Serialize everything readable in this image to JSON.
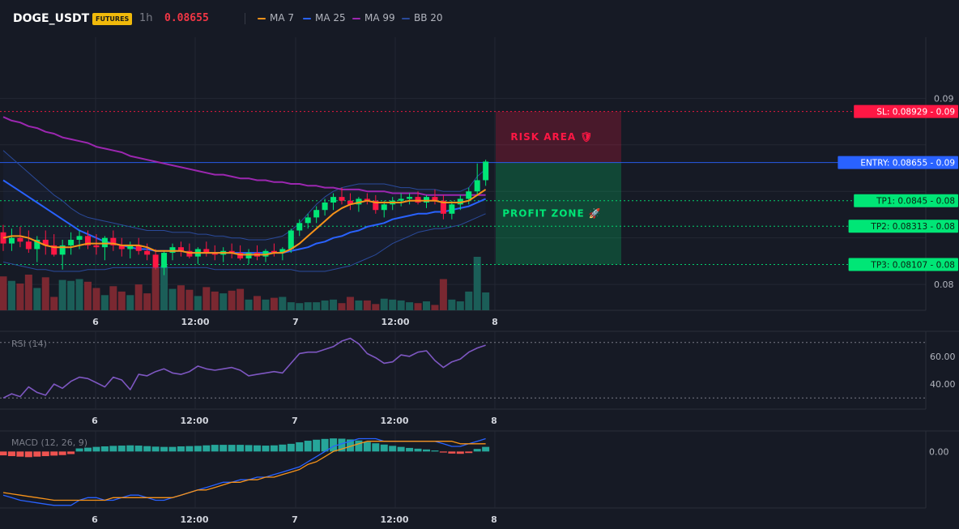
{
  "header": {
    "symbol": "DOGE_USDT",
    "badge": "FUTURES",
    "interval": "1h",
    "price": "0.08655",
    "legend": [
      {
        "label": "MA 7",
        "color": "#f7931a"
      },
      {
        "label": "MA 25",
        "color": "#2962ff"
      },
      {
        "label": "MA 99",
        "color": "#9c27b0"
      },
      {
        "label": "BB 20",
        "color": "#2a4a9a"
      }
    ]
  },
  "colors": {
    "up": "#26a69a",
    "down": "#ef5350",
    "bull_candle": "#00e676",
    "bear_candle": "#ff1744",
    "grid": "#232733"
  },
  "chart_data": [
    {
      "type": "candlestick",
      "title": "DOGE_USDT",
      "x_ticks": [
        "6",
        "12:00",
        "7",
        "12:00",
        "8"
      ],
      "y_ticks": [
        "0.09",
        "0.08"
      ],
      "ylim": [
        0.07883,
        0.09328
      ],
      "candles": [
        [
          0.0828,
          0.0832,
          0.0818,
          0.0822
        ],
        [
          0.0822,
          0.083,
          0.0818,
          0.0825
        ],
        [
          0.0825,
          0.0831,
          0.082,
          0.0823
        ],
        [
          0.0823,
          0.0829,
          0.0817,
          0.0819
        ],
        [
          0.0819,
          0.0826,
          0.0812,
          0.0824
        ],
        [
          0.0824,
          0.0829,
          0.0816,
          0.0821
        ],
        [
          0.0821,
          0.0827,
          0.0815,
          0.0816
        ],
        [
          0.0816,
          0.0824,
          0.0808,
          0.0821
        ],
        [
          0.0821,
          0.0828,
          0.0816,
          0.0824
        ],
        [
          0.0824,
          0.0829,
          0.0819,
          0.0826
        ],
        [
          0.0826,
          0.0829,
          0.0819,
          0.0821
        ],
        [
          0.0821,
          0.0827,
          0.0816,
          0.082
        ],
        [
          0.082,
          0.0826,
          0.0813,
          0.0825
        ],
        [
          0.0825,
          0.0829,
          0.0818,
          0.0821
        ],
        [
          0.0821,
          0.0825,
          0.0815,
          0.0819
        ],
        [
          0.0819,
          0.0823,
          0.0814,
          0.0821
        ],
        [
          0.0821,
          0.0825,
          0.0816,
          0.0818
        ],
        [
          0.0818,
          0.0822,
          0.0813,
          0.0816
        ],
        [
          0.0816,
          0.0819,
          0.0808,
          0.0809
        ],
        [
          0.0809,
          0.0818,
          0.0805,
          0.0817
        ],
        [
          0.0817,
          0.0822,
          0.0813,
          0.082
        ],
        [
          0.082,
          0.0823,
          0.0815,
          0.0818
        ],
        [
          0.0818,
          0.0822,
          0.0814,
          0.0815
        ],
        [
          0.0815,
          0.082,
          0.0811,
          0.0819
        ],
        [
          0.0819,
          0.0823,
          0.0815,
          0.0817
        ],
        [
          0.0817,
          0.0821,
          0.0813,
          0.0816
        ],
        [
          0.0816,
          0.082,
          0.0812,
          0.0818
        ],
        [
          0.0818,
          0.0822,
          0.0814,
          0.0817
        ],
        [
          0.0817,
          0.0821,
          0.0813,
          0.0814
        ],
        [
          0.0814,
          0.0819,
          0.0811,
          0.0817
        ],
        [
          0.0817,
          0.0821,
          0.0813,
          0.0815
        ],
        [
          0.0815,
          0.0819,
          0.0812,
          0.0818
        ],
        [
          0.0818,
          0.0822,
          0.0815,
          0.0817
        ],
        [
          0.0817,
          0.082,
          0.0813,
          0.0819
        ],
        [
          0.0819,
          0.083,
          0.0817,
          0.0829
        ],
        [
          0.0829,
          0.0835,
          0.0826,
          0.0833
        ],
        [
          0.0833,
          0.0838,
          0.083,
          0.0836
        ],
        [
          0.0836,
          0.0842,
          0.0833,
          0.084
        ],
        [
          0.084,
          0.0846,
          0.0837,
          0.0844
        ],
        [
          0.0844,
          0.0849,
          0.084,
          0.0847
        ],
        [
          0.0847,
          0.0852,
          0.0843,
          0.0845
        ],
        [
          0.0845,
          0.0849,
          0.084,
          0.0843
        ],
        [
          0.0843,
          0.0847,
          0.0839,
          0.0846
        ],
        [
          0.0846,
          0.0849,
          0.0843,
          0.0845
        ],
        [
          0.0845,
          0.0848,
          0.0838,
          0.084
        ],
        [
          0.084,
          0.0845,
          0.0836,
          0.0843
        ],
        [
          0.0843,
          0.0847,
          0.084,
          0.0845
        ],
        [
          0.0845,
          0.0849,
          0.0842,
          0.0846
        ],
        [
          0.0846,
          0.0849,
          0.0843,
          0.0847
        ],
        [
          0.0847,
          0.085,
          0.0843,
          0.0844
        ],
        [
          0.0844,
          0.0848,
          0.0841,
          0.0847
        ],
        [
          0.0847,
          0.0851,
          0.0843,
          0.0845
        ],
        [
          0.0845,
          0.0848,
          0.0835,
          0.0838
        ],
        [
          0.0838,
          0.0845,
          0.0835,
          0.0843
        ],
        [
          0.0843,
          0.0848,
          0.084,
          0.0846
        ],
        [
          0.0846,
          0.0852,
          0.0843,
          0.085
        ],
        [
          0.085,
          0.0865,
          0.0848,
          0.0856
        ],
        [
          0.0856,
          0.0867,
          0.0853,
          0.0866
        ]
      ],
      "volumes": [
        38,
        33,
        30,
        40,
        25,
        37,
        15,
        34,
        33,
        35,
        32,
        25,
        17,
        27,
        21,
        17,
        29,
        19,
        48,
        50,
        24,
        28,
        23,
        16,
        26,
        21,
        19,
        22,
        24,
        12,
        16,
        12,
        14,
        15,
        9,
        8,
        9,
        9,
        11,
        12,
        8,
        15,
        11,
        11,
        7,
        13,
        12,
        11,
        9,
        8,
        10,
        6,
        35,
        12,
        10,
        21,
        60,
        20
      ],
      "lines": [
        {
          "name": "MA 7",
          "color": "#f7931a",
          "values": [
            0.0825,
            0.0826,
            0.0826,
            0.0825,
            0.0823,
            0.0821,
            0.082,
            0.082,
            0.082,
            0.0821,
            0.0822,
            0.0822,
            0.0822,
            0.0822,
            0.0821,
            0.0821,
            0.0821,
            0.082,
            0.0818,
            0.0818,
            0.0818,
            0.0818,
            0.0817,
            0.0817,
            0.0817,
            0.0817,
            0.0817,
            0.0817,
            0.0816,
            0.0816,
            0.0816,
            0.0816,
            0.0817,
            0.0817,
            0.0819,
            0.0822,
            0.0826,
            0.083,
            0.0834,
            0.0838,
            0.0841,
            0.0843,
            0.0844,
            0.0845,
            0.0844,
            0.0844,
            0.0844,
            0.0844,
            0.0845,
            0.0845,
            0.0845,
            0.0845,
            0.0844,
            0.0844,
            0.0844,
            0.0845,
            0.0848,
            0.0851
          ]
        },
        {
          "name": "MA 25",
          "color": "#2962ff",
          "values": [
            0.0856,
            0.0853,
            0.085,
            0.0847,
            0.0844,
            0.0841,
            0.0838,
            0.0835,
            0.0832,
            0.0829,
            0.0827,
            0.0825,
            0.0823,
            0.0822,
            0.0821,
            0.082,
            0.0819,
            0.0819,
            0.0818,
            0.0818,
            0.0818,
            0.0818,
            0.0817,
            0.0817,
            0.0817,
            0.0817,
            0.0817,
            0.0817,
            0.0817,
            0.0817,
            0.0817,
            0.0817,
            0.0817,
            0.0817,
            0.0818,
            0.0819,
            0.082,
            0.0822,
            0.0823,
            0.0825,
            0.0826,
            0.0828,
            0.0829,
            0.0831,
            0.0832,
            0.0833,
            0.0835,
            0.0836,
            0.0837,
            0.0838,
            0.0838,
            0.0839,
            0.0839,
            0.084,
            0.0841,
            0.0842,
            0.0844,
            0.0846
          ]
        },
        {
          "name": "MA 99",
          "color": "#9c27b0",
          "values": [
            0.089,
            0.0888,
            0.0887,
            0.0885,
            0.0884,
            0.0882,
            0.0881,
            0.0879,
            0.0878,
            0.0877,
            0.0876,
            0.0874,
            0.0873,
            0.0872,
            0.0871,
            0.0869,
            0.0868,
            0.0867,
            0.0866,
            0.0865,
            0.0864,
            0.0863,
            0.0862,
            0.0861,
            0.086,
            0.0859,
            0.0859,
            0.0858,
            0.0857,
            0.0857,
            0.0856,
            0.0856,
            0.0855,
            0.0855,
            0.0854,
            0.0854,
            0.0853,
            0.0853,
            0.0852,
            0.0852,
            0.0851,
            0.0851,
            0.0851,
            0.085,
            0.085,
            0.085,
            0.0849,
            0.0849,
            0.0849,
            0.0849,
            0.0848,
            0.0848,
            0.0848,
            0.0848,
            0.0848,
            0.0848,
            0.0848,
            0.0848
          ]
        },
        {
          "name": "BB 20 upper",
          "color": "#2a4a9a",
          "values": [
            0.0872,
            0.0868,
            0.0864,
            0.086,
            0.0856,
            0.0852,
            0.0848,
            0.0845,
            0.0841,
            0.0838,
            0.0836,
            0.0835,
            0.0834,
            0.0833,
            0.0832,
            0.0831,
            0.083,
            0.0829,
            0.0829,
            0.0829,
            0.0828,
            0.0828,
            0.0828,
            0.0827,
            0.0827,
            0.0826,
            0.0826,
            0.0825,
            0.0825,
            0.0824,
            0.0824,
            0.0824,
            0.0825,
            0.0826,
            0.0829,
            0.0833,
            0.0838,
            0.0843,
            0.0847,
            0.085,
            0.0852,
            0.0853,
            0.0854,
            0.0854,
            0.0854,
            0.0854,
            0.0853,
            0.0852,
            0.0852,
            0.0851,
            0.0851,
            0.0851,
            0.085,
            0.085,
            0.085,
            0.0852,
            0.0858,
            0.0862
          ]
        },
        {
          "name": "BB 20 lower",
          "color": "#2a4a9a",
          "values": [
            0.0812,
            0.0811,
            0.081,
            0.0809,
            0.0808,
            0.0808,
            0.0807,
            0.0807,
            0.0807,
            0.0807,
            0.0808,
            0.0808,
            0.0808,
            0.0809,
            0.0809,
            0.0809,
            0.0809,
            0.0809,
            0.0809,
            0.0809,
            0.0809,
            0.0809,
            0.0809,
            0.0809,
            0.0809,
            0.0808,
            0.0808,
            0.0808,
            0.0808,
            0.0808,
            0.0808,
            0.0808,
            0.0808,
            0.0808,
            0.0808,
            0.0807,
            0.0807,
            0.0807,
            0.0807,
            0.0808,
            0.0809,
            0.081,
            0.0812,
            0.0814,
            0.0816,
            0.0819,
            0.0822,
            0.0824,
            0.0826,
            0.0828,
            0.0829,
            0.083,
            0.083,
            0.0831,
            0.0832,
            0.0834,
            0.0836,
            0.0838
          ]
        }
      ],
      "price_levels": [
        {
          "label": "SL: 0.08929",
          "axis": "0.09",
          "value": 0.08929,
          "color": "#ff1744"
        },
        {
          "label": "ENTRY: 0.08655",
          "axis": "0.09",
          "value": 0.08655,
          "color": "#2962ff"
        },
        {
          "label": "TP1: 0.0845",
          "axis": "0.08",
          "value": 0.0845,
          "color": "#00e676"
        },
        {
          "label": "TP2: 0.08313",
          "axis": "0.08",
          "value": 0.08313,
          "color": "#00e676"
        },
        {
          "label": "TP3: 0.08107",
          "axis": "0.08",
          "value": 0.08107,
          "color": "#00e676"
        }
      ],
      "zones": [
        {
          "label": "RISK AREA 🛡",
          "from": 0.08655,
          "to": 0.08929,
          "color": "#ff1744"
        },
        {
          "label": "PROFIT ZONE 🚀",
          "from": 0.08107,
          "to": 0.08655,
          "color": "#00e676"
        }
      ]
    },
    {
      "type": "line",
      "title": "RSI (14)",
      "ylim": [
        22,
        78
      ],
      "y_ticks": [
        "60.00",
        "40.00"
      ],
      "bands": [
        70,
        30
      ],
      "series": [
        {
          "color": "#7e57c2",
          "values": [
            30,
            33,
            31,
            38,
            34,
            32,
            40,
            37,
            42,
            45,
            44,
            41,
            38,
            45,
            43,
            36,
            47,
            46,
            49,
            51,
            48,
            47,
            49,
            53,
            51,
            50,
            51,
            52,
            50,
            46,
            47,
            48,
            49,
            48,
            55,
            62,
            63,
            63,
            65,
            67,
            71,
            73,
            69,
            62,
            59,
            55,
            56,
            61,
            60,
            63,
            64,
            57,
            52,
            56,
            58,
            63,
            66,
            68
          ]
        }
      ],
      "x_ticks": [
        "6",
        "12:00",
        "7",
        "12:00",
        "8"
      ]
    },
    {
      "type": "bar",
      "title": "MACD (12, 26, 9)",
      "ylim": [
        -0.0022,
        0.0008
      ],
      "y_ticks": [
        "0.00"
      ],
      "histogram": [
        -0.00015,
        -0.00018,
        -0.0002,
        -0.00022,
        -0.0002,
        -0.00018,
        -0.00016,
        -0.00014,
        -0.0001,
        0.00012,
        0.00015,
        0.00018,
        0.0002,
        0.00022,
        0.00023,
        0.00024,
        0.00023,
        0.00021,
        0.00019,
        0.00018,
        0.00018,
        0.0002,
        0.00021,
        0.00022,
        0.00024,
        0.00026,
        0.00026,
        0.00026,
        0.00026,
        0.00025,
        0.00024,
        0.00023,
        0.00024,
        0.00027,
        0.0003,
        0.00036,
        0.00042,
        0.00046,
        0.00049,
        0.00051,
        0.0005,
        0.00047,
        0.00043,
        0.00037,
        0.00032,
        0.00027,
        0.00022,
        0.00018,
        0.00014,
        0.00011,
        8e-05,
        4e-05,
        -4e-05,
        -8e-05,
        -9e-05,
        -6e-05,
        0.0001,
        0.00018
      ],
      "series": [
        {
          "color": "#2962ff",
          "values": [
            -0.0017,
            -0.0018,
            -0.0019,
            -0.00195,
            -0.002,
            -0.00205,
            -0.0021,
            -0.0021,
            -0.0021,
            -0.0019,
            -0.0018,
            -0.0018,
            -0.0019,
            -0.0019,
            -0.0018,
            -0.0017,
            -0.0017,
            -0.0018,
            -0.0019,
            -0.0019,
            -0.0018,
            -0.0017,
            -0.0016,
            -0.0015,
            -0.0014,
            -0.0013,
            -0.0012,
            -0.0012,
            -0.0011,
            -0.0011,
            -0.001,
            -0.001,
            -0.0009,
            -0.0008,
            -0.0007,
            -0.0006,
            -0.0004,
            -0.0002,
            0.0,
            0.0002,
            0.0003,
            0.0004,
            0.0005,
            0.0005,
            0.0005,
            0.0004,
            0.0004,
            0.0004,
            0.0004,
            0.0004,
            0.0004,
            0.0004,
            0.0003,
            0.0002,
            0.0002,
            0.0003,
            0.0004,
            0.0005
          ]
        },
        {
          "color": "#f7931a",
          "values": [
            -0.0016,
            -0.00165,
            -0.0017,
            -0.00175,
            -0.0018,
            -0.00185,
            -0.0019,
            -0.0019,
            -0.0019,
            -0.0019,
            -0.0019,
            -0.0019,
            -0.0019,
            -0.0018,
            -0.0018,
            -0.0018,
            -0.0018,
            -0.0018,
            -0.0018,
            -0.0018,
            -0.0018,
            -0.0017,
            -0.0016,
            -0.0015,
            -0.0015,
            -0.0014,
            -0.0013,
            -0.0012,
            -0.0012,
            -0.0011,
            -0.0011,
            -0.001,
            -0.001,
            -0.0009,
            -0.0008,
            -0.0007,
            -0.0005,
            -0.0004,
            -0.0002,
            0.0,
            0.0001,
            0.0002,
            0.0003,
            0.0004,
            0.0004,
            0.0004,
            0.0004,
            0.0004,
            0.0004,
            0.0004,
            0.0004,
            0.0004,
            0.0004,
            0.0004,
            0.0003,
            0.0003,
            0.0003,
            0.0003
          ]
        }
      ],
      "x_ticks": [
        "6",
        "12:00",
        "7",
        "12:00",
        "8"
      ]
    }
  ]
}
